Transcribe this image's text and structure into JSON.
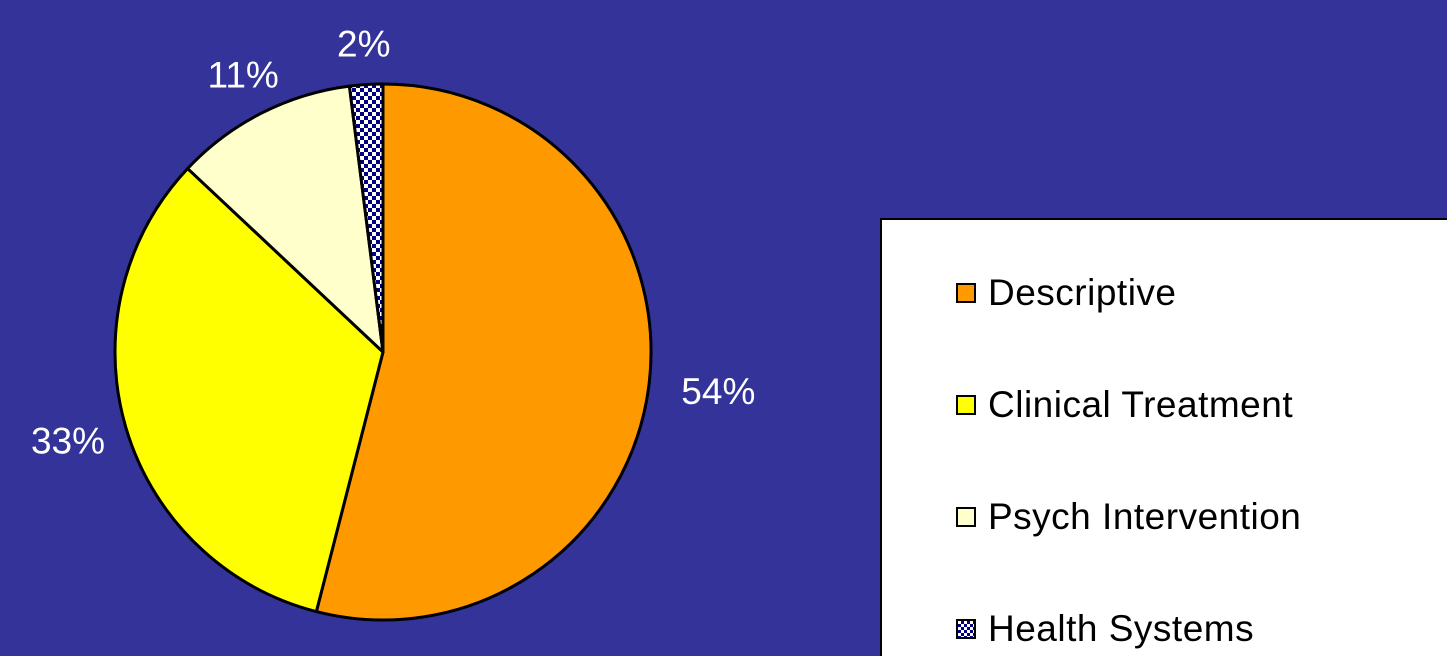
{
  "chart_data": {
    "type": "pie",
    "title": "",
    "slices": [
      {
        "name": "Descriptive",
        "value": 54,
        "label": "54%",
        "color": "#ff9900",
        "pattern": "solid"
      },
      {
        "name": "Clinical Treatment",
        "value": 33,
        "label": "33%",
        "color": "#ffff00",
        "pattern": "solid"
      },
      {
        "name": "Psych Intervention",
        "value": 11,
        "label": "11%",
        "color": "#ffffcc",
        "pattern": "solid"
      },
      {
        "name": "Health Systems",
        "value": 2,
        "label": "2%",
        "color": "#000080",
        "pattern": "checker"
      }
    ],
    "legend_placement": "right"
  },
  "colors": {
    "background": "#333399",
    "label_text": "#ffffff",
    "legend_background": "#ffffff",
    "outline": "#000000"
  }
}
